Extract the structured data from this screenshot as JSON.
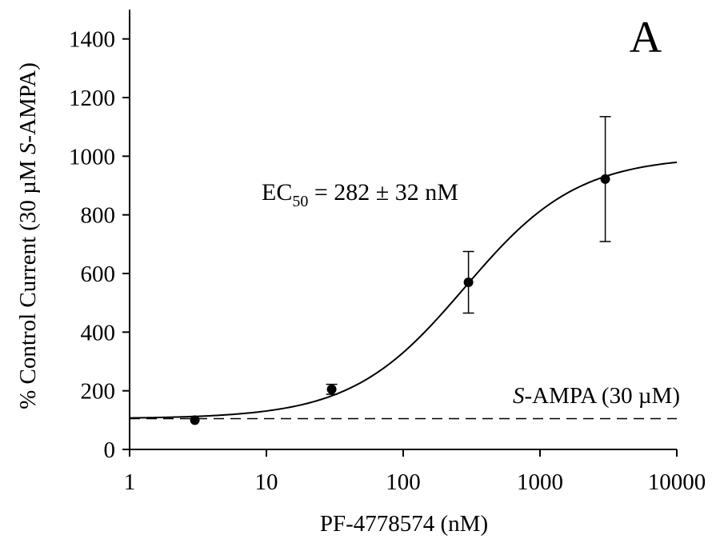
{
  "chart_data": {
    "type": "scatter",
    "panel_label": "A",
    "xlabel": "PF-4778574 (nM)",
    "ylabel_parts": [
      "% Control Current (30 µM ",
      "S",
      "-AMPA)"
    ],
    "x_scale": "log",
    "xlim": [
      1,
      10000
    ],
    "ylim": [
      0,
      1500
    ],
    "x_ticks": [
      1,
      10,
      100,
      1000,
      10000
    ],
    "y_ticks": [
      0,
      200,
      400,
      600,
      800,
      1000,
      1200,
      1400
    ],
    "series": [
      {
        "points": [
          {
            "x": 3,
            "y": 100,
            "err": 0
          },
          {
            "x": 30,
            "y": 205,
            "err": 17
          },
          {
            "x": 300,
            "y": 570,
            "err": 105
          },
          {
            "x": 3000,
            "y": 922,
            "err": 213
          }
        ]
      }
    ],
    "fit_curve": {
      "model": "hill",
      "bottom": 105,
      "top": 1000,
      "ec50": 282,
      "hill_slope": 1.05
    },
    "baseline": {
      "y": 105,
      "style": "dashed",
      "label_italic": "S",
      "label_rest": "-AMPA (30 µM)"
    },
    "annotation": {
      "prefix": "EC",
      "subscript": "50",
      "suffix": " = 282 ± 32 nM"
    },
    "grid": false
  }
}
